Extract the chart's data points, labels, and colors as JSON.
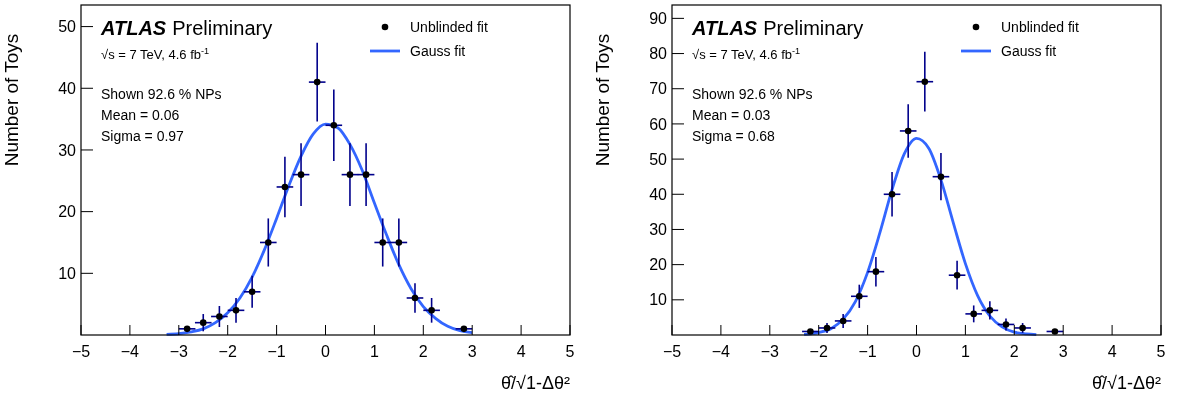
{
  "chart_data": [
    {
      "type": "scatter",
      "title": "ATLAS",
      "subtitle": "Preliminary",
      "xlabel": "θ̂/√1-Δθ²",
      "ylabel": "Number of Toys",
      "xlim": [
        -5,
        5
      ],
      "xticks": [
        -5,
        -4,
        -3,
        -2,
        -1,
        0,
        1,
        2,
        3,
        4,
        5
      ],
      "ylim": [
        0,
        53.5
      ],
      "yticks": [
        10,
        20,
        30,
        40,
        50
      ],
      "legend": "top right",
      "grid": false,
      "annotations": [
        "√s = 7 TeV, 4.6 fb$^{-1}$",
        "Shown 92.6 % NPs",
        "Mean = 0.06",
        "Sigma = 0.97"
      ],
      "series": [
        {
          "name": "Unblinded fit",
          "marker": "circle",
          "color": "#000000",
          "x": [
            -2.83,
            -2.5,
            -2.17,
            -1.83,
            -1.5,
            -1.17,
            -0.83,
            -0.5,
            -0.17,
            0.17,
            0.5,
            0.83,
            1.17,
            1.5,
            1.83,
            2.17,
            2.83
          ],
          "values": [
            1,
            2,
            3,
            4,
            7,
            15,
            24,
            26,
            41,
            34,
            26,
            26,
            15,
            15,
            6,
            4,
            1
          ],
          "errors": [
            null,
            1.4,
            1.7,
            2,
            2.6,
            3.9,
            4.9,
            5.1,
            6.4,
            5.8,
            5.1,
            5.1,
            3.9,
            3.9,
            2.4,
            2,
            null
          ],
          "xerrors": [
            0.17,
            0.17,
            0.17,
            0.17,
            0.17,
            0.17,
            0.17,
            0.17,
            0.17,
            0.17,
            0.17,
            0.17,
            0.17,
            0.17,
            0.17,
            0.17,
            0.17
          ]
        },
        {
          "name": "Gauss fit",
          "type": "line",
          "color": "#3366ff",
          "x": [
            -3.25,
            -3,
            -2.75,
            -2.5,
            -2.25,
            -2,
            -1.75,
            -1.5,
            -1.25,
            -1,
            -0.75,
            -0.5,
            -0.25,
            0,
            0.25,
            0.5,
            0.75,
            1,
            1.25,
            1.5,
            1.75,
            2,
            2.25,
            2.5,
            2.75,
            3
          ],
          "values": [
            0.1,
            0.2,
            0.5,
            1,
            2,
            3.6,
            6,
            9.4,
            13.8,
            18.9,
            24.2,
            29,
            32.6,
            34.2,
            33.6,
            30.9,
            26.7,
            21.4,
            16.2,
            11.4,
            7.5,
            4.6,
            2.7,
            1.4,
            0.7,
            0.4
          ]
        }
      ]
    },
    {
      "type": "scatter",
      "title": "ATLAS",
      "subtitle": "Preliminary",
      "xlabel": "θ̂/√1-Δθ²",
      "ylabel": "Number of Toys",
      "xlim": [
        -5,
        5
      ],
      "xticks": [
        -5,
        -4,
        -3,
        -2,
        -1,
        0,
        1,
        2,
        3,
        4,
        5
      ],
      "ylim": [
        0,
        93.8
      ],
      "yticks": [
        10,
        20,
        30,
        40,
        50,
        60,
        70,
        80,
        90
      ],
      "legend": "top right",
      "grid": false,
      "annotations": [
        "√s = 7 TeV, 4.6 fb$^{-1}$",
        "Shown 92.6 % NPs",
        "Mean = 0.03",
        "Sigma = 0.68"
      ],
      "series": [
        {
          "name": "Unblinded fit",
          "marker": "circle",
          "color": "#000000",
          "x": [
            -2.17,
            -1.83,
            -1.5,
            -1.17,
            -0.83,
            -0.5,
            -0.17,
            0.17,
            0.5,
            0.83,
            1.17,
            1.5,
            1.83,
            2.17,
            2.83
          ],
          "values": [
            1,
            2,
            4,
            11,
            18,
            40,
            58,
            72,
            45,
            17,
            6,
            7,
            3,
            2,
            1
          ],
          "errors": [
            null,
            1.4,
            2,
            3.3,
            4.2,
            6.3,
            7.6,
            8.5,
            6.7,
            4.1,
            2.4,
            2.6,
            1.7,
            1.4,
            null
          ],
          "xerrors": [
            0.17,
            0.17,
            0.17,
            0.17,
            0.17,
            0.17,
            0.17,
            0.17,
            0.17,
            0.17,
            0.17,
            0.17,
            0.17,
            0.17,
            0.17
          ]
        },
        {
          "name": "Gauss fit",
          "type": "line",
          "color": "#3366ff",
          "x": [
            -2.3,
            -2,
            -1.75,
            -1.5,
            -1.25,
            -1,
            -0.75,
            -0.5,
            -0.25,
            0,
            0.25,
            0.5,
            0.75,
            1,
            1.25,
            1.5,
            1.75,
            2,
            2.25,
            2.45
          ],
          "values": [
            0.2,
            0.7,
            1.8,
            4.5,
            9.5,
            17.8,
            29,
            41.3,
            51.5,
            55.9,
            53.1,
            44.1,
            32,
            20.3,
            11.2,
            5.4,
            2.3,
            0.8,
            0.3,
            0.1
          ]
        }
      ]
    }
  ]
}
